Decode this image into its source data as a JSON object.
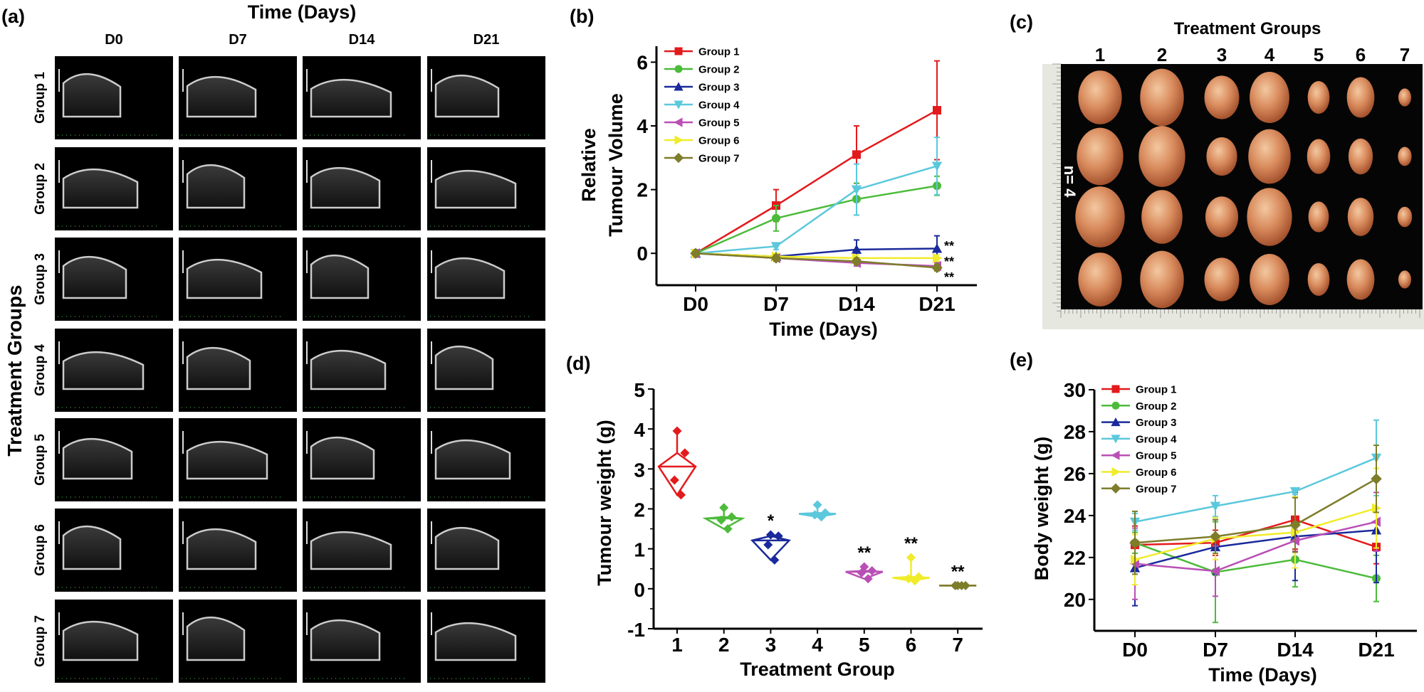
{
  "panel_labels": {
    "a": "(a)",
    "b": "(b)",
    "c": "(c)",
    "d": "(d)",
    "e": "(e)"
  },
  "panel_a": {
    "title": "Time (Days)",
    "columns": [
      "D0",
      "D7",
      "D14",
      "D21"
    ],
    "rows": [
      "Group 1",
      "Group 2",
      "Group 3",
      "Group 4",
      "Group 5",
      "Group 6",
      "Group 7"
    ],
    "ylabel": "Treatment Groups"
  },
  "panel_c": {
    "title": "Treatment Groups",
    "columns": [
      "1",
      "2",
      "3",
      "4",
      "5",
      "6",
      "7"
    ],
    "n_label": "n= 4"
  },
  "colors": {
    "Group 1": "#e31a1c",
    "Group 2": "#4cbb3a",
    "Group 3": "#1a2a9c",
    "Group 4": "#5bc8dc",
    "Group 5": "#b94fb5",
    "Group 6": "#f0ec2a",
    "Group 7": "#7d7d2a"
  },
  "chart_data": [
    {
      "id": "b",
      "type": "line",
      "xlabel": "Time (Days)",
      "ylabel": [
        "Relative",
        "Tumour Volume"
      ],
      "categories": [
        "D0",
        "D7",
        "D14",
        "D21"
      ],
      "ylim": [
        -1,
        6.5
      ],
      "yticks": [
        0,
        2,
        4,
        6
      ],
      "legend": "top-left",
      "annotations": [
        "**",
        "**",
        "**"
      ],
      "series": [
        {
          "name": "Group 1",
          "marker": "square",
          "values": [
            0,
            1.5,
            3.1,
            4.49
          ],
          "err": [
            0,
            0.5,
            0.9,
            1.55
          ]
        },
        {
          "name": "Group 2",
          "marker": "circle",
          "values": [
            0,
            1.1,
            1.7,
            2.12
          ],
          "err": [
            0,
            0.4,
            0.5,
            0.3
          ]
        },
        {
          "name": "Group 3",
          "marker": "triangle-up",
          "values": [
            0,
            -0.1,
            0.12,
            0.15
          ],
          "err": [
            0,
            0.05,
            0.3,
            0.4
          ]
        },
        {
          "name": "Group 4",
          "marker": "triangle-down",
          "values": [
            0,
            0.22,
            2.0,
            2.74
          ],
          "err": [
            0,
            0.1,
            0.8,
            0.9
          ]
        },
        {
          "name": "Group 5",
          "marker": "triangle-left",
          "values": [
            0,
            -0.15,
            -0.3,
            -0.4
          ],
          "err": [
            0,
            0.1,
            0.1,
            0.1
          ]
        },
        {
          "name": "Group 6",
          "marker": "triangle-right",
          "values": [
            0,
            -0.1,
            -0.15,
            -0.15
          ],
          "err": [
            0,
            0.1,
            0.1,
            0.1
          ]
        },
        {
          "name": "Group 7",
          "marker": "diamond",
          "values": [
            0,
            -0.15,
            -0.25,
            -0.45
          ],
          "err": [
            0,
            0.1,
            0.1,
            0.1
          ]
        }
      ]
    },
    {
      "id": "d",
      "type": "scatter",
      "xlabel": "Treatment Group",
      "ylabel": "Tumour weight (g)",
      "categories": [
        "1",
        "2",
        "3",
        "4",
        "5",
        "6",
        "7"
      ],
      "ylim": [
        -1,
        5
      ],
      "yticks": [
        -1,
        0,
        1,
        2,
        3,
        4,
        5
      ],
      "groups": [
        {
          "category": "1",
          "points": [
            3.95,
            3.4,
            2.72,
            2.35
          ],
          "annotation": ""
        },
        {
          "category": "2",
          "points": [
            2.03,
            1.8,
            1.72,
            1.5
          ],
          "annotation": ""
        },
        {
          "category": "3",
          "points": [
            1.35,
            1.32,
            1.1,
            0.72
          ],
          "annotation": "*"
        },
        {
          "category": "4",
          "points": [
            2.1,
            1.9,
            1.85,
            1.8
          ],
          "annotation": ""
        },
        {
          "category": "5",
          "points": [
            0.55,
            0.45,
            0.4,
            0.25
          ],
          "annotation": "**"
        },
        {
          "category": "6",
          "points": [
            0.78,
            0.3,
            0.25,
            0.2
          ],
          "annotation": "**"
        },
        {
          "category": "7",
          "points": [
            0.08,
            0.08,
            0.08,
            0.08
          ],
          "annotation": "**"
        }
      ]
    },
    {
      "id": "e",
      "type": "line",
      "xlabel": "Time (Days)",
      "ylabel": "Body weight (g)",
      "categories": [
        "D0",
        "D7",
        "D14",
        "D21"
      ],
      "ylim": [
        18.5,
        30
      ],
      "yticks": [
        20,
        22,
        24,
        26,
        28,
        30
      ],
      "legend": "top-left",
      "series": [
        {
          "name": "Group 1",
          "marker": "square",
          "values": [
            22.6,
            22.7,
            23.8,
            22.5
          ],
          "err": [
            0.9,
            0.6,
            1.4,
            0.8
          ]
        },
        {
          "name": "Group 2",
          "marker": "circle",
          "values": [
            22.7,
            21.3,
            21.9,
            21.0
          ],
          "err": [
            0.5,
            2.4,
            1.3,
            1.1
          ]
        },
        {
          "name": "Group 3",
          "marker": "triangle-up",
          "values": [
            21.5,
            22.5,
            23.0,
            23.3
          ],
          "err": [
            1.8,
            1.3,
            2.1,
            2.5
          ]
        },
        {
          "name": "Group 4",
          "marker": "triangle-down",
          "values": [
            23.7,
            24.45,
            25.15,
            26.75
          ],
          "err": [
            0.4,
            0.5,
            0.15,
            1.8
          ]
        },
        {
          "name": "Group 5",
          "marker": "triangle-left",
          "values": [
            21.7,
            21.35,
            22.8,
            23.7
          ],
          "err": [
            1.7,
            1.2,
            0.5,
            1.4
          ]
        },
        {
          "name": "Group 6",
          "marker": "triangle-right",
          "values": [
            21.9,
            22.9,
            23.2,
            24.35
          ],
          "err": [
            1.2,
            1.0,
            1.7,
            1.9
          ]
        },
        {
          "name": "Group 7",
          "marker": "diamond",
          "values": [
            22.7,
            23.0,
            23.55,
            25.75
          ],
          "err": [
            1.5,
            0.8,
            1.3,
            1.6
          ]
        }
      ]
    }
  ]
}
